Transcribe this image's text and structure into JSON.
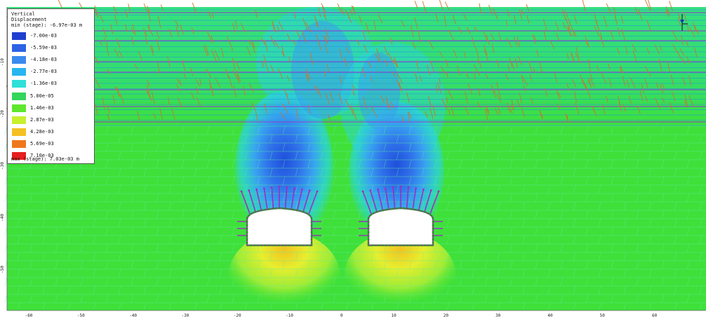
{
  "legend": {
    "title_line1": "Vertical",
    "title_line2": "Displacement",
    "min_text": "min (stage): -6.97e-03 m",
    "max_text": "max (stage): 7.03e-03 m",
    "entries": [
      {
        "label": "-7.00e-03",
        "color": "#1e3fcf"
      },
      {
        "label": "-5.59e-03",
        "color": "#2d62e6"
      },
      {
        "label": "-4.18e-03",
        "color": "#3a8af0"
      },
      {
        "label": "-2.77e-03",
        "color": "#27b6ef"
      },
      {
        "label": "-1.36e-03",
        "color": "#2fe0d8"
      },
      {
        "label": "5.00e-05",
        "color": "#31d65a"
      },
      {
        "label": "1.46e-03",
        "color": "#5fe72e"
      },
      {
        "label": "2.87e-03",
        "color": "#c8f02f"
      },
      {
        "label": "4.28e-03",
        "color": "#f4c022"
      },
      {
        "label": "5.69e-03",
        "color": "#f0771b"
      },
      {
        "label": "7.10e-03",
        "color": "#e61f1f"
      }
    ]
  },
  "x_axis": {
    "ticks": [
      "-60",
      "-50",
      "-40",
      "-30",
      "-20",
      "-10",
      "0",
      "10",
      "20",
      "30",
      "40",
      "50",
      "60"
    ]
  },
  "y_axis": {
    "ticks": [
      "-10",
      "-20",
      "-30",
      "-40",
      "-50"
    ]
  },
  "colors": {
    "background_field": "#3fe03a",
    "upper_field": "#27e08a",
    "joint_line": "#1f9dd8",
    "fracture": "#c9772a",
    "bolt": "#9c2fbf",
    "liner": "#2a8a2a",
    "tunnel_fill": "#ffffff"
  },
  "icons": {
    "north_arrow": "compass-arrow-icon"
  }
}
